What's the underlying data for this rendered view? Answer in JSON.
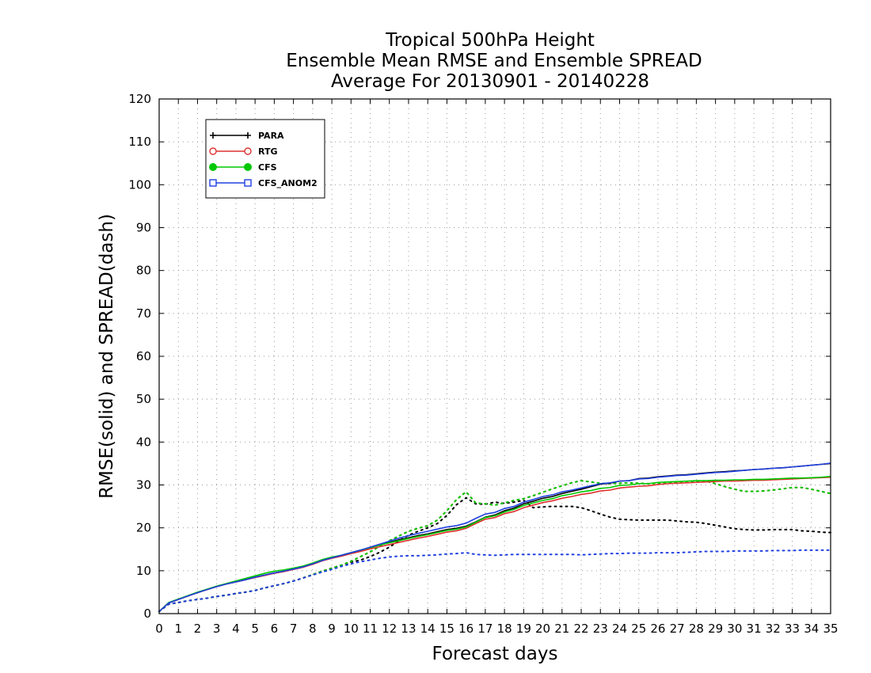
{
  "chart_data": {
    "type": "line",
    "title_lines": [
      "Tropical 500hPa Height",
      "Ensemble Mean RMSE and Ensemble SPREAD",
      "Average For 20130901 - 20140228"
    ],
    "xlabel": "Forecast days",
    "ylabel": "RMSE(solid) and SPREAD(dash)",
    "xlim": [
      0,
      35
    ],
    "ylim": [
      0,
      120
    ],
    "x_ticks": [
      "0",
      "1",
      "2",
      "3",
      "4",
      "5",
      "6",
      "7",
      "8",
      "9",
      "10",
      "11",
      "12",
      "13",
      "14",
      "15",
      "16",
      "17",
      "18",
      "19",
      "20",
      "21",
      "22",
      "23",
      "24",
      "25",
      "26",
      "27",
      "28",
      "29",
      "30",
      "31",
      "32",
      "33",
      "34",
      "35"
    ],
    "y_ticks": [
      "0",
      "10",
      "20",
      "30",
      "40",
      "50",
      "60",
      "70",
      "80",
      "90",
      "100",
      "110",
      "120"
    ],
    "grid": true,
    "legend_position": "top-left",
    "x": [
      0,
      0.5,
      1,
      1.5,
      2,
      2.5,
      3,
      3.5,
      4,
      4.5,
      5,
      5.5,
      6,
      6.5,
      7,
      7.5,
      8,
      8.5,
      9,
      9.5,
      10,
      10.5,
      11,
      11.5,
      12,
      12.5,
      13,
      13.5,
      14,
      14.5,
      15,
      15.5,
      16,
      16.5,
      17,
      17.5,
      18,
      18.5,
      19,
      19.5,
      20,
      20.5,
      21,
      21.5,
      22,
      22.5,
      23,
      23.5,
      24,
      24.5,
      25,
      25.5,
      26,
      26.5,
      27,
      27.5,
      28,
      28.5,
      29,
      29.5,
      30,
      30.5,
      31,
      31.5,
      32,
      32.5,
      33,
      33.5,
      34,
      34.5,
      35
    ],
    "series": [
      {
        "name": "PARA",
        "color": "#000000",
        "marker": "plus",
        "rmse": [
          0.5,
          2.5,
          3.3,
          4.1,
          4.9,
          5.6,
          6.3,
          6.9,
          7.4,
          7.9,
          8.5,
          9.0,
          9.5,
          9.9,
          10.4,
          10.9,
          11.6,
          12.4,
          13.0,
          13.6,
          14.2,
          14.8,
          15.4,
          16.0,
          16.6,
          17.2,
          17.7,
          18.2,
          18.6,
          19.1,
          19.6,
          19.9,
          20.4,
          21.4,
          22.5,
          23.0,
          24.0,
          24.6,
          25.6,
          26.2,
          26.9,
          27.3,
          28.0,
          28.5,
          29.0,
          29.6,
          30.2,
          30.4,
          30.9,
          31.0,
          31.5,
          31.6,
          31.9,
          32.1,
          32.3,
          32.4,
          32.6,
          32.8,
          33.0,
          33.1,
          33.3,
          33.4,
          33.6,
          33.7,
          33.9,
          34.0,
          34.2,
          34.4,
          34.6,
          34.8,
          35.0
        ],
        "spread": [
          0.5,
          2.2,
          2.6,
          3.0,
          3.3,
          3.6,
          4.0,
          4.3,
          4.7,
          5.0,
          5.4,
          6.0,
          6.5,
          7.0,
          7.6,
          8.3,
          9.1,
          9.9,
          10.6,
          11.3,
          12.0,
          12.5,
          13.3,
          14.3,
          15.5,
          17.0,
          18.3,
          19.2,
          20.0,
          21.0,
          22.9,
          25.4,
          27.0,
          25.6,
          25.5,
          26.0,
          25.7,
          26.0,
          26.4,
          24.7,
          24.9,
          25.0,
          25.0,
          25.0,
          24.7,
          24.0,
          23.2,
          22.5,
          22.0,
          21.9,
          21.8,
          21.8,
          21.8,
          21.8,
          21.6,
          21.4,
          21.3,
          21.0,
          20.6,
          20.2,
          19.8,
          19.6,
          19.5,
          19.5,
          19.6,
          19.6,
          19.6,
          19.3,
          19.2,
          19.0,
          18.9
        ]
      },
      {
        "name": "RTG",
        "color": "#e03030",
        "marker": "circle-open",
        "rmse": [
          0.5,
          2.5,
          3.3,
          4.1,
          4.9,
          5.6,
          6.3,
          6.9,
          7.4,
          7.9,
          8.4,
          8.9,
          9.4,
          9.8,
          10.3,
          10.8,
          11.5,
          12.3,
          12.9,
          13.4,
          14.0,
          14.5,
          15.1,
          15.6,
          16.1,
          16.6,
          17.1,
          17.6,
          18.0,
          18.5,
          19.0,
          19.3,
          19.9,
          21.0,
          22.0,
          22.4,
          23.3,
          23.8,
          24.7,
          25.3,
          25.9,
          26.3,
          26.9,
          27.3,
          27.8,
          28.1,
          28.6,
          28.8,
          29.3,
          29.5,
          29.7,
          29.8,
          30.1,
          30.3,
          30.4,
          30.5,
          30.6,
          30.7,
          30.8,
          30.9,
          30.9,
          31.0,
          31.1,
          31.1,
          31.2,
          31.3,
          31.4,
          31.5,
          31.6,
          31.7,
          31.8
        ],
        "spread": [
          0.5,
          2.2,
          2.6,
          3.0,
          3.3,
          3.6,
          4.0,
          4.3,
          4.7,
          5.0,
          5.4,
          6.0,
          6.5,
          7.0,
          7.6,
          8.3,
          9.1,
          9.9,
          10.6,
          11.3,
          12.2,
          13.3,
          14.4,
          15.7,
          17.0,
          18.1,
          19.2,
          19.9,
          20.5,
          21.8,
          24.0,
          26.6,
          28.4,
          25.8,
          25.6,
          25.3,
          25.8,
          26.4,
          26.8,
          27.5,
          28.3,
          29.1,
          29.8,
          30.5,
          31.0,
          30.7,
          30.4,
          30.3,
          30.4,
          30.5,
          30.4,
          30.3,
          30.4,
          30.5,
          30.6,
          30.7,
          30.8,
          30.9,
          30.3,
          29.6,
          29.0,
          28.5,
          28.5,
          28.6,
          28.8,
          29.1,
          29.4,
          29.4,
          29.0,
          28.5,
          28.0
        ]
      },
      {
        "name": "CFS",
        "color": "#00c800",
        "marker": "circle-filled",
        "rmse": [
          0.5,
          2.6,
          3.4,
          4.2,
          5.0,
          5.7,
          6.4,
          7.0,
          7.6,
          8.2,
          8.8,
          9.4,
          9.9,
          10.2,
          10.6,
          11.1,
          11.8,
          12.6,
          13.2,
          13.6,
          14.2,
          14.8,
          15.4,
          16.0,
          16.5,
          17.0,
          17.5,
          18.0,
          18.4,
          18.9,
          19.4,
          19.7,
          20.2,
          21.3,
          22.4,
          22.8,
          23.7,
          24.3,
          25.2,
          25.8,
          26.4,
          26.8,
          27.5,
          27.9,
          28.4,
          28.7,
          29.2,
          29.4,
          29.9,
          30.0,
          30.3,
          30.3,
          30.6,
          30.7,
          30.8,
          30.9,
          31.0,
          31.0,
          31.1,
          31.1,
          31.2,
          31.2,
          31.3,
          31.3,
          31.4,
          31.5,
          31.6,
          31.6,
          31.7,
          31.8,
          32.0
        ],
        "spread": [
          0.5,
          2.2,
          2.6,
          3.0,
          3.3,
          3.6,
          4.0,
          4.3,
          4.7,
          5.0,
          5.4,
          6.0,
          6.5,
          7.0,
          7.6,
          8.3,
          9.1,
          9.9,
          10.6,
          11.3,
          12.2,
          13.3,
          14.4,
          15.7,
          17.0,
          18.1,
          19.2,
          19.9,
          20.5,
          21.8,
          24.0,
          26.6,
          28.4,
          25.8,
          25.6,
          25.3,
          25.8,
          26.4,
          26.8,
          27.5,
          28.3,
          29.1,
          29.8,
          30.5,
          31.0,
          30.7,
          30.4,
          30.3,
          30.4,
          30.5,
          30.4,
          30.3,
          30.4,
          30.5,
          30.6,
          30.7,
          30.8,
          30.9,
          30.3,
          29.6,
          29.0,
          28.5,
          28.5,
          28.6,
          28.8,
          29.1,
          29.4,
          29.4,
          29.0,
          28.5,
          28.0
        ]
      },
      {
        "name": "CFS_ANOM2",
        "color": "#2040e0",
        "marker": "square-open",
        "rmse": [
          0.5,
          2.5,
          3.3,
          4.1,
          4.9,
          5.6,
          6.3,
          6.9,
          7.4,
          7.9,
          8.5,
          9.0,
          9.5,
          9.9,
          10.4,
          10.9,
          11.6,
          12.4,
          13.0,
          13.6,
          14.2,
          14.8,
          15.5,
          16.2,
          16.9,
          17.6,
          18.2,
          18.7,
          19.2,
          19.7,
          20.2,
          20.5,
          21.1,
          22.2,
          23.2,
          23.6,
          24.5,
          25.0,
          26.0,
          26.6,
          27.3,
          27.7,
          28.4,
          28.8,
          29.3,
          29.8,
          30.3,
          30.5,
          30.9,
          31.0,
          31.4,
          31.5,
          31.8,
          32.0,
          32.2,
          32.3,
          32.5,
          32.7,
          32.9,
          33.0,
          33.2,
          33.4,
          33.6,
          33.7,
          33.9,
          34.0,
          34.2,
          34.4,
          34.6,
          34.8,
          35.1
        ],
        "spread": [
          0.5,
          2.2,
          2.6,
          3.0,
          3.3,
          3.6,
          4.0,
          4.3,
          4.7,
          5.0,
          5.4,
          6.0,
          6.5,
          7.0,
          7.6,
          8.3,
          9.0,
          9.7,
          10.3,
          11.0,
          11.6,
          12.1,
          12.5,
          12.9,
          13.2,
          13.4,
          13.5,
          13.5,
          13.6,
          13.7,
          13.9,
          14.0,
          14.2,
          13.8,
          13.7,
          13.6,
          13.7,
          13.8,
          13.8,
          13.8,
          13.8,
          13.8,
          13.8,
          13.8,
          13.7,
          13.8,
          13.9,
          14.0,
          14.0,
          14.1,
          14.1,
          14.1,
          14.2,
          14.2,
          14.2,
          14.3,
          14.4,
          14.5,
          14.5,
          14.5,
          14.6,
          14.6,
          14.6,
          14.6,
          14.7,
          14.7,
          14.7,
          14.8,
          14.8,
          14.8,
          14.8
        ]
      }
    ]
  }
}
